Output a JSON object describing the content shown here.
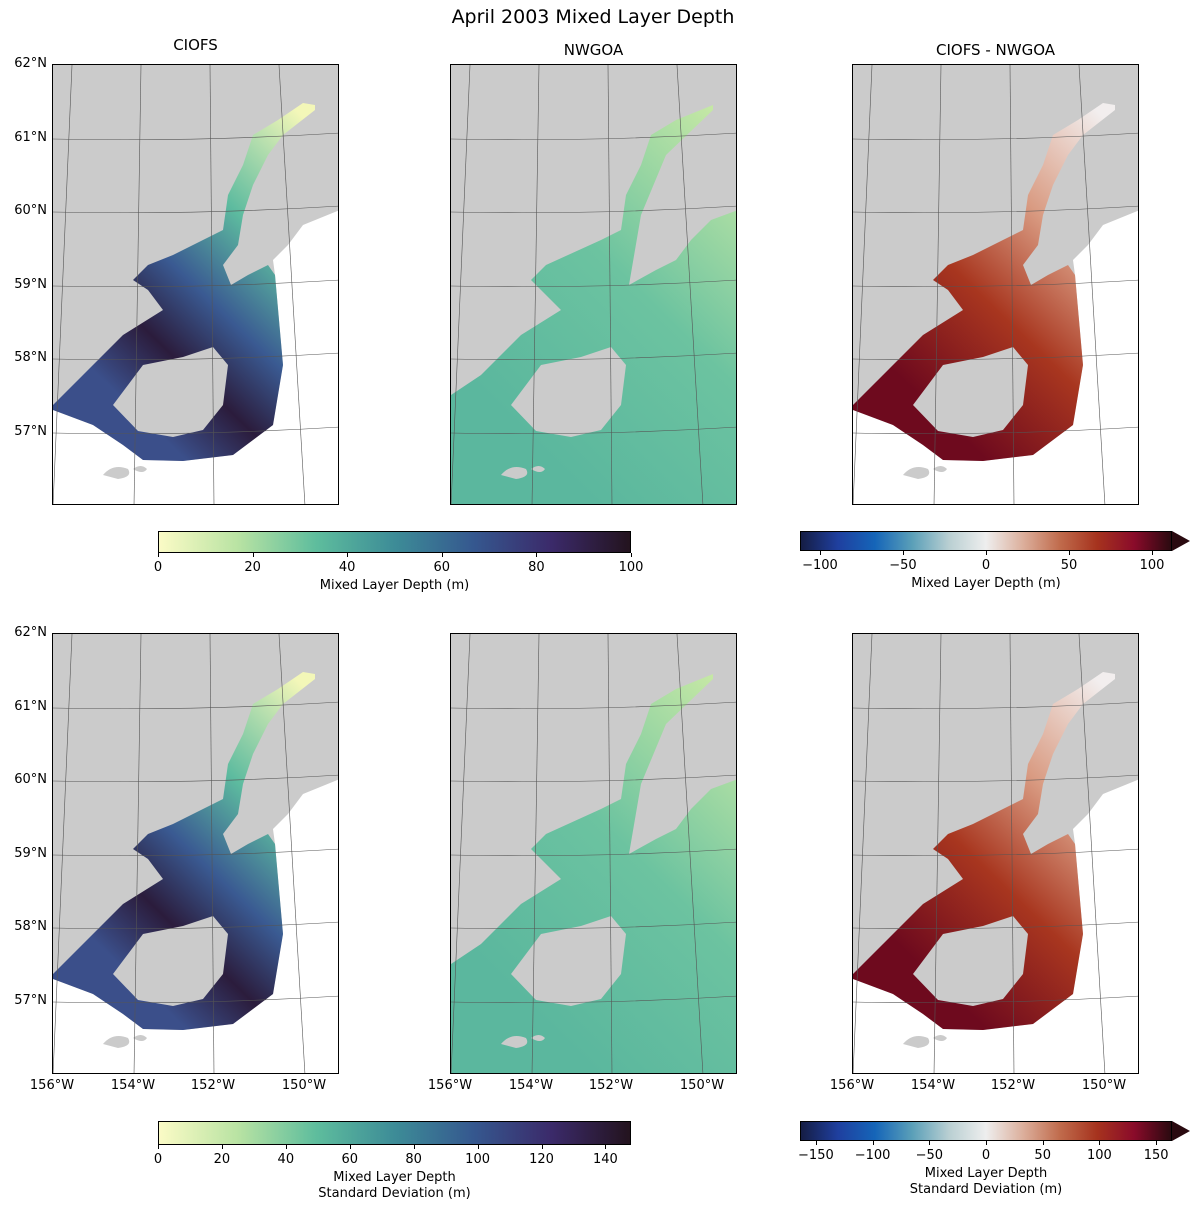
{
  "suptitle": "April 2003 Mixed Layer Depth",
  "column_titles": [
    "CIOFS",
    "NWGOA",
    "CIOFS - NWGOA"
  ],
  "lat_ticks": [
    "62°N",
    "61°N",
    "60°N",
    "59°N",
    "58°N",
    "57°N"
  ],
  "lon_ticks": [
    "156°W",
    "154°W",
    "152°W",
    "150°W"
  ],
  "colorbars": [
    {
      "name": "mld",
      "range": [
        0,
        100
      ],
      "ticks": [
        0,
        20,
        40,
        60,
        80,
        100
      ],
      "label": [
        "Mixed Layer Depth (m)"
      ],
      "extend": false,
      "colors": [
        "#fbfbc6",
        "#b9e3a3",
        "#5ebd9d",
        "#3d8c97",
        "#35588f",
        "#3b2a6a",
        "#23131e"
      ]
    },
    {
      "name": "mld-diff",
      "range": [
        -112,
        112
      ],
      "ticks": [
        -100,
        -50,
        0,
        50,
        100
      ],
      "label": [
        "Mixed Layer Depth (m)"
      ],
      "extend": true,
      "colors": [
        "#151d44",
        "#1f3f9f",
        "#1565b8",
        "#5a9fb8",
        "#b9cfd2",
        "#eeeeee",
        "#dcaf9c",
        "#c06b4c",
        "#a6331e",
        "#8a0b2a",
        "#2b0a10"
      ]
    },
    {
      "name": "mld-std",
      "range": [
        0,
        148
      ],
      "ticks": [
        0,
        20,
        40,
        60,
        80,
        100,
        120,
        140
      ],
      "label": [
        "Mixed Layer Depth",
        "Standard Deviation (m)"
      ],
      "extend": false,
      "colors": [
        "#fbfbc6",
        "#b9e3a3",
        "#5ebd9d",
        "#3d8c97",
        "#35588f",
        "#3b2a6a",
        "#23131e"
      ]
    },
    {
      "name": "mld-std-diff",
      "range": [
        -164,
        164
      ],
      "ticks": [
        -150,
        -100,
        -50,
        0,
        50,
        100,
        150
      ],
      "label": [
        "Mixed Layer Depth",
        "Standard Deviation (m)"
      ],
      "extend": true,
      "colors": [
        "#151d44",
        "#1f3f9f",
        "#1565b8",
        "#5a9fb8",
        "#b9cfd2",
        "#eeeeee",
        "#dcaf9c",
        "#c06b4c",
        "#a6331e",
        "#8a0b2a",
        "#2b0a10"
      ]
    }
  ]
}
